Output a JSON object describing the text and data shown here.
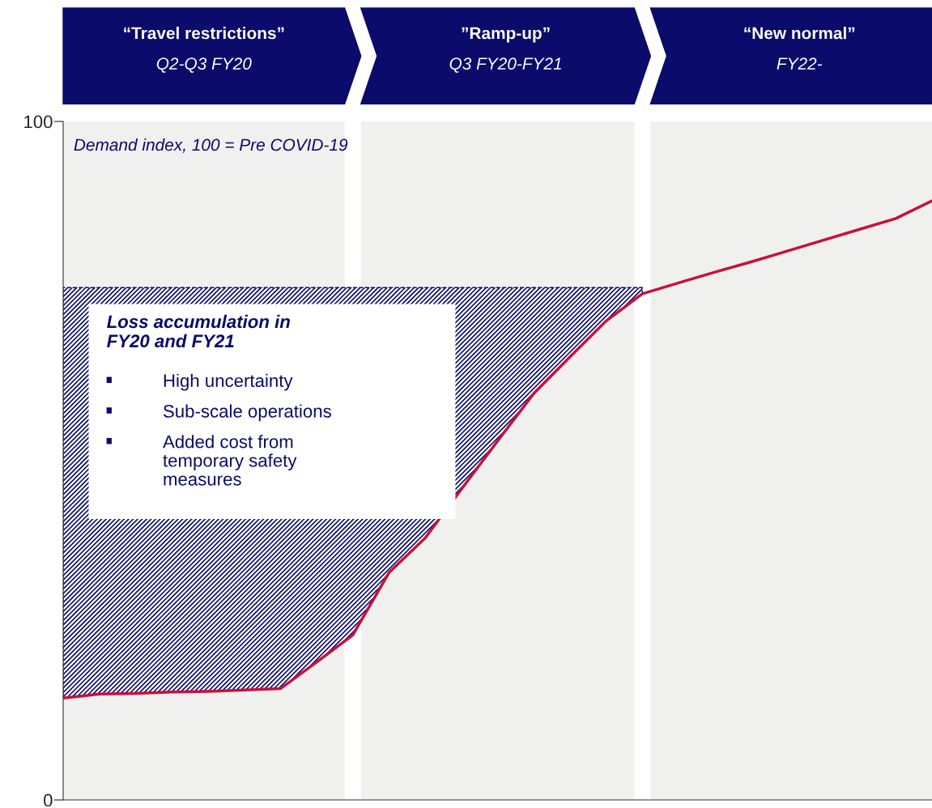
{
  "chart_data": {
    "type": "line",
    "subtitle": "Demand index, 100 = Pre COVID-19",
    "categories": [
      null,
      null,
      null,
      null,
      null,
      null,
      null,
      null,
      null,
      null,
      null,
      null,
      null,
      null,
      null,
      null,
      null,
      null,
      null,
      null,
      null,
      null,
      null,
      null,
      null
    ],
    "series": [
      {
        "color": "#c8103c",
        "upper": [
          75.5,
          75.5,
          75.5,
          75.5,
          75.5,
          75.5,
          75.5,
          75.5,
          75.5,
          75.5,
          75.5,
          75.5,
          75.5,
          75.5,
          75.5,
          75.5,
          75.5,
          null,
          null,
          null,
          null,
          null,
          null,
          null,
          null
        ],
        "lower": [
          15.0,
          15.6,
          15.7,
          15.9,
          16.0,
          16.2,
          16.4,
          20.3,
          24.3,
          33.5,
          38.6,
          45.8,
          52.9,
          59.9,
          65.3,
          70.6,
          74.6,
          null,
          null,
          null,
          null,
          null,
          null,
          null,
          null
        ],
        "values": [
          15.0,
          15.6,
          15.7,
          15.9,
          16.0,
          16.2,
          16.4,
          20.3,
          24.3,
          33.5,
          38.6,
          45.8,
          52.9,
          59.9,
          65.3,
          70.6,
          74.6,
          76.2,
          77.8,
          79.3,
          80.9,
          82.5,
          84.1,
          85.7,
          88.3
        ]
      }
    ],
    "ylim": [
      0,
      100
    ],
    "yticks": [
      0,
      100
    ],
    "tick_labels": "y",
    "marker": "none",
    "line_style": "solid",
    "annotations": [
      "“Travel restrictions”\nQ2-Q3 FY20",
      "”Ramp-up”\nQ3 FY20-FY21",
      "“New normal”\nFY22-",
      "Loss accumulation in\nFY20 and FY21",
      "High uncertainty",
      "Sub-scale operations",
      "Added cost from\ntemporary safety\nmeasures"
    ]
  }
}
